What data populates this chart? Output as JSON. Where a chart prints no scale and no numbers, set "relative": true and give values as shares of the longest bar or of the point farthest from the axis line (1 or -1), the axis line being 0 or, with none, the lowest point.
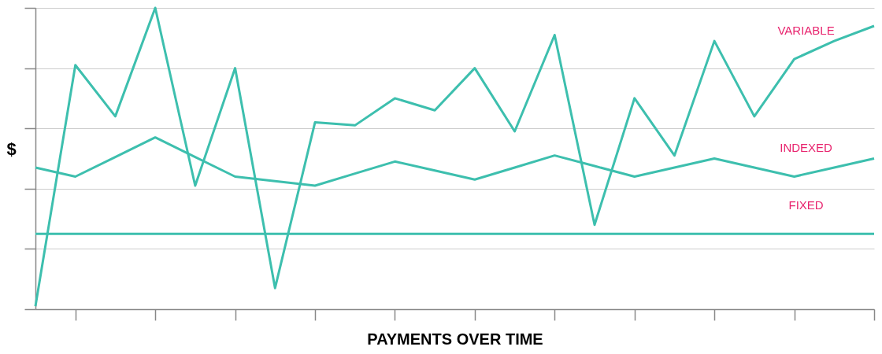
{
  "chart_data": {
    "type": "line",
    "relative": true,
    "xlabel": "PAYMENTS OVER TIME",
    "ylabel": "$",
    "grid": "y",
    "marker": "none",
    "line_style": "solid",
    "categories": [
      null,
      null,
      null,
      null,
      null,
      null,
      null,
      null,
      null,
      null,
      null,
      null,
      null,
      null,
      null,
      null,
      null,
      null,
      null,
      null,
      null,
      null
    ],
    "series": [
      {
        "name": "VARIABLE",
        "color": "#3dbfae",
        "values": [
          0.01,
          0.81,
          0.64,
          1.0,
          0.41,
          0.8,
          0.07,
          0.62,
          0.61,
          0.7,
          0.66,
          0.8,
          0.59,
          0.91,
          0.28,
          0.7,
          0.51,
          0.89,
          0.64,
          0.83,
          0.89,
          0.94
        ]
      },
      {
        "name": "INDEXED",
        "color": "#3dbfae",
        "values": [
          0.47,
          0.44,
          0.505,
          0.57,
          0.505,
          0.44,
          0.425,
          0.41,
          0.45,
          0.49,
          0.46,
          0.43,
          0.47,
          0.51,
          0.475,
          0.44,
          0.47,
          0.5,
          0.47,
          0.44,
          0.47,
          0.5
        ]
      },
      {
        "name": "FIXED",
        "color": "#3dbfae",
        "values": [
          0.25,
          0.25,
          0.25,
          0.25,
          0.25,
          0.25,
          0.25,
          0.25,
          0.25,
          0.25,
          0.25,
          0.25,
          0.25,
          0.25,
          0.25,
          0.25,
          0.25,
          0.25,
          0.25,
          0.25,
          0.25,
          0.25
        ]
      }
    ]
  }
}
